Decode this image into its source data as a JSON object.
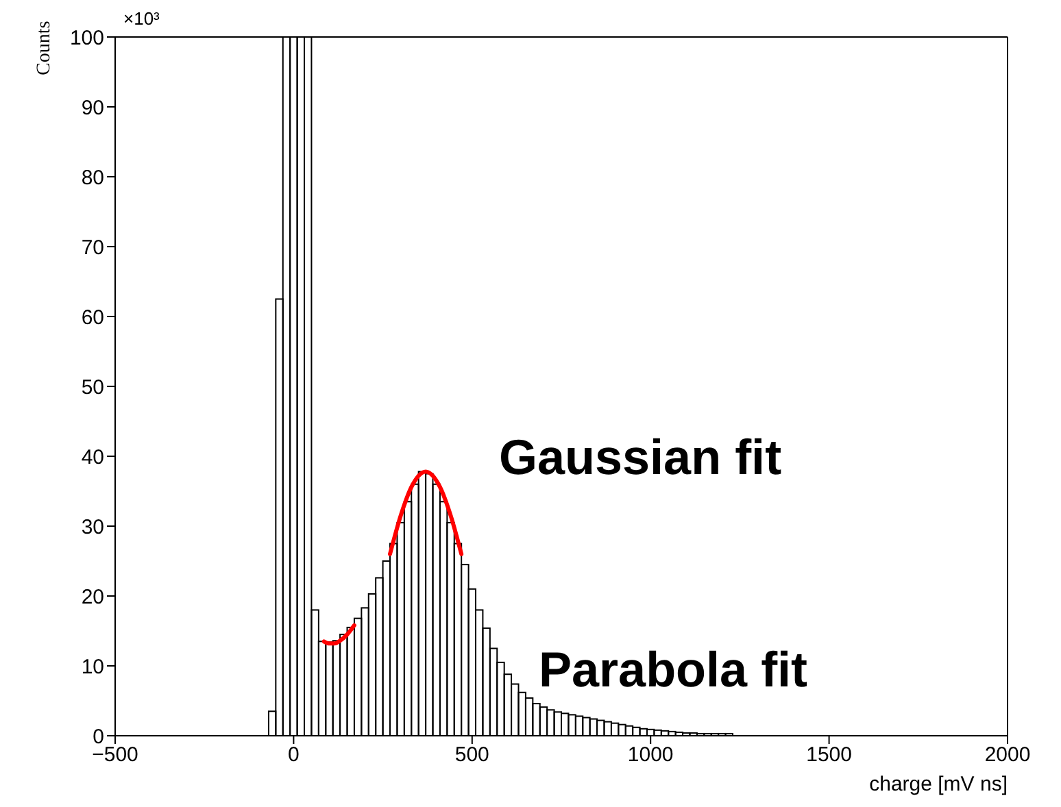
{
  "chart_data": {
    "type": "histogram",
    "xlabel": "charge [mV ns]",
    "ylabel": "Counts",
    "annotations": [
      "×10³",
      "Gaussian fit",
      "Parabola fit"
    ],
    "xlim": [
      -500,
      2000
    ],
    "xticks": [
      -500,
      0,
      500,
      1000,
      1500,
      2000
    ],
    "ylim": [
      0,
      100
    ],
    "yticks": [
      0,
      10,
      20,
      30,
      40,
      50,
      60,
      70,
      80,
      90,
      100
    ],
    "color": "#000000",
    "bins": [
      -70,
      -50,
      -30,
      -10,
      10,
      30,
      50,
      70,
      90,
      110,
      130,
      150,
      170,
      190,
      210,
      230,
      250,
      270,
      290,
      310,
      330,
      350,
      370,
      390,
      410,
      430,
      450,
      470,
      490,
      510,
      530,
      550,
      570,
      590,
      610,
      630,
      650,
      670,
      690,
      710,
      730,
      750,
      770,
      790,
      810,
      830,
      850,
      870,
      890,
      910,
      930,
      950,
      970,
      990,
      1010,
      1030,
      1050,
      1070,
      1090,
      1110,
      1130,
      1150,
      1170,
      1190,
      1210,
      1230
    ],
    "values": [
      3.5,
      62.5,
      100,
      100,
      100,
      100,
      18,
      13.5,
      13.4,
      13.6,
      14.5,
      15.5,
      16.8,
      18.3,
      20.3,
      22.6,
      25,
      27.5,
      30.5,
      33.5,
      36,
      37.8,
      37.5,
      36,
      33.5,
      30.5,
      27.5,
      24.5,
      21,
      18,
      15.4,
      12.5,
      10.5,
      8.8,
      7.4,
      6.2,
      5.4,
      4.6,
      4.1,
      3.7,
      3.4,
      3.2,
      3,
      2.8,
      2.6,
      2.4,
      2.2,
      2,
      1.8,
      1.6,
      1.4,
      1.2,
      1,
      0.9,
      0.8,
      0.7,
      0.6,
      0.5,
      0.4,
      0.4,
      0.3,
      0.3,
      0.3,
      0.3,
      0.3
    ],
    "series": [
      {
        "type": "line",
        "color": "#ff0000",
        "x": [
          85,
          100,
          115,
          130,
          150,
          170
        ],
        "values": [
          13.5,
          13.2,
          13.2,
          13.6,
          14.5,
          15.8
        ]
      },
      {
        "type": "line",
        "color": "#ff0000",
        "x": [
          270,
          300,
          330,
          370,
          410,
          440,
          470
        ],
        "values": [
          26,
          31.5,
          35.6,
          37.8,
          35.6,
          31.5,
          26
        ]
      }
    ]
  }
}
